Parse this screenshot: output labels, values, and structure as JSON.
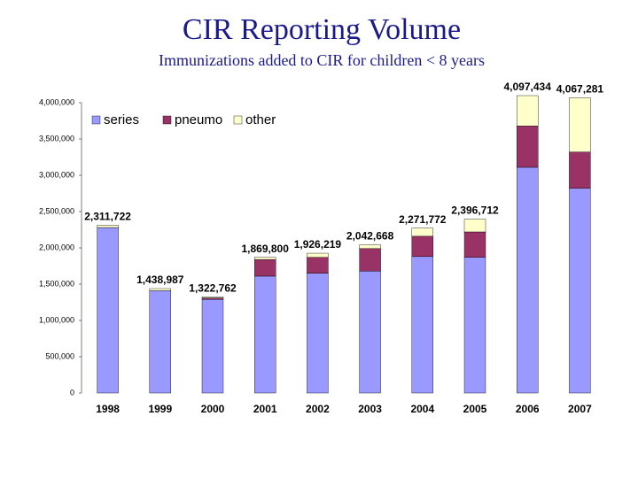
{
  "chart_data": {
    "type": "stacked_bar",
    "title": "CIR Reporting Volume",
    "subtitle": "Immunizations added to CIR for children < 8 years",
    "categories": [
      "1998",
      "1999",
      "2000",
      "2001",
      "2002",
      "2003",
      "2004",
      "2005",
      "2006",
      "2007"
    ],
    "series": [
      {
        "name": "series",
        "color": "#9999ff",
        "values": [
          2280000,
          1410000,
          1290000,
          1610000,
          1650000,
          1680000,
          1880000,
          1870000,
          3110000,
          2820000
        ]
      },
      {
        "name": "pneumo",
        "color": "#993366",
        "values": [
          0,
          0,
          20000.0,
          230000,
          220000,
          310000,
          280000,
          350000,
          570000,
          500000
        ]
      },
      {
        "name": "other",
        "color": "#ffffcc",
        "values": [
          31722,
          28987,
          12762,
          29800,
          56219,
          52668,
          111772,
          176712,
          417434,
          747281
        ]
      }
    ],
    "totals": [
      {
        "value": 2311722,
        "label": "2,311,722"
      },
      {
        "value": 1438987,
        "label": "1,438,987"
      },
      {
        "value": 1322762,
        "label": "1,322,762"
      },
      {
        "value": 1869800,
        "label": "1,869,800"
      },
      {
        "value": 1926219,
        "label": "1,926,219"
      },
      {
        "value": 2042668,
        "label": "2,042,668"
      },
      {
        "value": 2271772,
        "label": "2,271,772"
      },
      {
        "value": 2396712,
        "label": "2,396,712"
      },
      {
        "value": 4097434,
        "label": "4,097,434"
      },
      {
        "value": 4067281,
        "label": "4,067,281"
      }
    ],
    "ylim": [
      0,
      4000000
    ],
    "yticks": [
      0,
      {
        "value": 500000,
        "label": "500,000"
      },
      {
        "value": 1000000,
        "label": "1,000,000"
      },
      {
        "value": 1500000,
        "label": "1,500,000"
      },
      {
        "value": 2000000,
        "label": "2,000,000"
      },
      {
        "value": 2500000,
        "label": "2,500,000"
      },
      {
        "value": 3000000,
        "label": "3,000,000"
      },
      {
        "value": 3500000,
        "label": "3,500,000"
      },
      {
        "value": 4000000,
        "label": "4,000,000"
      }
    ]
  }
}
